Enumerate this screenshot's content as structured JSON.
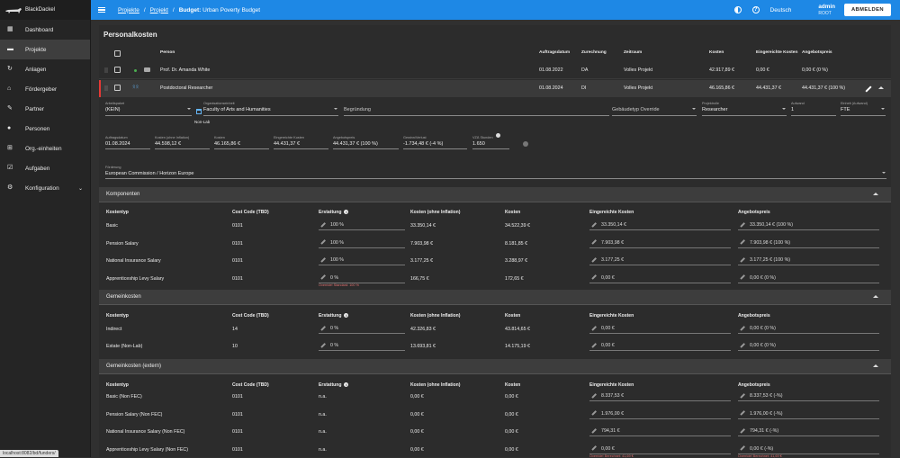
{
  "app": {
    "name": "BlackDackel"
  },
  "sidebar": {
    "items": [
      {
        "label": "Dashboard",
        "icon": "dashboard-icon"
      },
      {
        "label": "Projekte",
        "icon": "briefcase-icon"
      },
      {
        "label": "Anlagen",
        "icon": "assets-icon"
      },
      {
        "label": "Fördergeber",
        "icon": "bank-icon"
      },
      {
        "label": "Partner",
        "icon": "handshake-icon"
      },
      {
        "label": "Personen",
        "icon": "person-icon"
      },
      {
        "label": "Org.-einheiten",
        "icon": "org-icon"
      },
      {
        "label": "Aufgaben",
        "icon": "task-icon"
      },
      {
        "label": "Konfiguration",
        "icon": "gear-icon"
      }
    ]
  },
  "topbar": {
    "crumb1": "Projekte",
    "crumb2": "Projekt",
    "crumb_prefix": "Budget:",
    "crumb_title": "Urban Poverty Budget",
    "lang": "Deutsch",
    "user": "admin",
    "role": "ROOT",
    "logout": "ABMELDEN"
  },
  "page": {
    "title": "Personalkosten"
  },
  "table": {
    "headers": [
      "Person",
      "Auftragsdatum",
      "Zurechnung",
      "Zeitraum",
      "Kosten",
      "Eingereichte Kosten",
      "Angebotspreis"
    ],
    "rows": [
      {
        "person": "Prof. Dr. Amanda White",
        "date": "01.08.2022",
        "zur": "DA",
        "zeit": "Volles Projekt",
        "kosten": "42.917,89 €",
        "eing": "0,00 €",
        "angebot": "0,00 € (0 %)"
      },
      {
        "person": "Postdoctoral Researcher",
        "date": "01.08.2024",
        "zur": "DI",
        "zeit": "Volles Projekt",
        "kosten": "46.165,86 €",
        "eing": "44.431,37 €",
        "angebot": "44.431,37 € (100 %)"
      }
    ]
  },
  "detail": {
    "arbeitspaket_label": "Arbeitspaket",
    "arbeitspaket": "(KEIN)",
    "org_label": "Organisationseinheit",
    "org": "Faculty of Arts and Humanities",
    "org_sub": "Non-Lab",
    "begr_label": "Begründung",
    "gebaeude": "Gebäudetyp Override",
    "rolle_label": "Projektrolle",
    "rolle": "Researcher",
    "aufwand_label": "Aufwand",
    "aufwand": "1",
    "einheit_label": "Einheit (Aufwand)",
    "einheit": "FTE",
    "auftragsdatum_label": "Auftragsdatum",
    "auftragsdatum": "01.08.2024",
    "kosten_oi_label": "Kosten (ohne Inflation)",
    "kosten_oi": "44.598,12 €",
    "kosten_label": "Kosten",
    "kosten": "46.165,86 €",
    "eing_label": "Eingereichte Kosten",
    "eing": "44.431,37 €",
    "angebot_label": "Angebotspreis",
    "angebot": "44.431,37 € (100 %)",
    "gewinn_label": "Gewinn/Verlust",
    "gewinn": "-1.734,48 € (-4 %)",
    "vza_label": "VZÄ Stunden",
    "vza": "1.650",
    "foerderung_label": "Förderung",
    "foerderung": "European Commission / Horizon Europe"
  },
  "col_headers": {
    "typ": "Kostentyp",
    "code": "Cost Code (TBD)",
    "erst": "Erstattung",
    "koi": "Kosten (ohne Inflation)",
    "k": "Kosten",
    "ek": "Eingereichte Kosten",
    "ap": "Angebotspreis"
  },
  "komponenten": {
    "title": "Komponenten",
    "rows": [
      {
        "typ": "Basic",
        "code": "0101",
        "erst": "100 %",
        "koi": "33.350,14 €",
        "k": "34.522,39 €",
        "ek": "33.350,14 €",
        "ap": "33.350,14 € (100 %)"
      },
      {
        "typ": "Pension Salary",
        "code": "0101",
        "erst": "100 %",
        "koi": "7.903,98 €",
        "k": "8.181,85 €",
        "ek": "7.903,98 €",
        "ap": "7.903,98 € (100 %)"
      },
      {
        "typ": "National Insurance Salary",
        "code": "0101",
        "erst": "100 %",
        "koi": "3.177,25 €",
        "k": "3.288,97 €",
        "ek": "3.177,25 €",
        "ap": "3.177,25 € (100 %)"
      },
      {
        "typ": "Apprenticeship Levy Salary",
        "code": "0101",
        "erst": "0 %",
        "koi": "166,75 €",
        "k": "172,65 €",
        "ek": "0,00 €",
        "ap": "0,00 € (0 %)",
        "err": "Override! Standard: 100 %"
      }
    ]
  },
  "gemein": {
    "title": "Gemeinkosten",
    "rows": [
      {
        "typ": "Indirect",
        "code": "14",
        "erst": "0 %",
        "koi": "42.326,83 €",
        "k": "43.814,65 €",
        "ek": "0,00 €",
        "ap": "0,00 € (0 %)"
      },
      {
        "typ": "Estate (Non-Lab)",
        "code": "10",
        "erst": "0 %",
        "koi": "13.693,81 €",
        "k": "14.175,19 €",
        "ek": "0,00 €",
        "ap": "0,00 € (0 %)"
      }
    ]
  },
  "extern": {
    "title": "Gemeinkosten (extern)",
    "rows": [
      {
        "typ": "Basic (Non FEC)",
        "code": "0101",
        "erst": "n.a.",
        "koi": "0,00 €",
        "k": "0,00 €",
        "ek": "8.337,53 €",
        "ap": "8.337,53 € (-%)"
      },
      {
        "typ": "Pension Salary (Non FEC)",
        "code": "0101",
        "erst": "n.a.",
        "koi": "0,00 €",
        "k": "0,00 €",
        "ek": "1.976,00 €",
        "ap": "1.976,00 € (-%)"
      },
      {
        "typ": "National Insurance Salary (Non FEC)",
        "code": "0101",
        "erst": "n.a.",
        "koi": "0,00 €",
        "k": "0,00 €",
        "ek": "794,31 €",
        "ap": "794,31 € (-%)"
      },
      {
        "typ": "Apprenticeship Levy Salary (Non FEC)",
        "code": "0101",
        "erst": "n.a.",
        "koi": "0,00 €",
        "k": "0,00 €",
        "ek": "0,00 €",
        "ap": "0,00 € (-%)",
        "err_ek": "Override! Berechnet: 41,69 €",
        "err_ap": "Override! Berechnet: 41,69 €"
      }
    ]
  },
  "status": {
    "url": "localhost:8082/bd/funders/"
  }
}
